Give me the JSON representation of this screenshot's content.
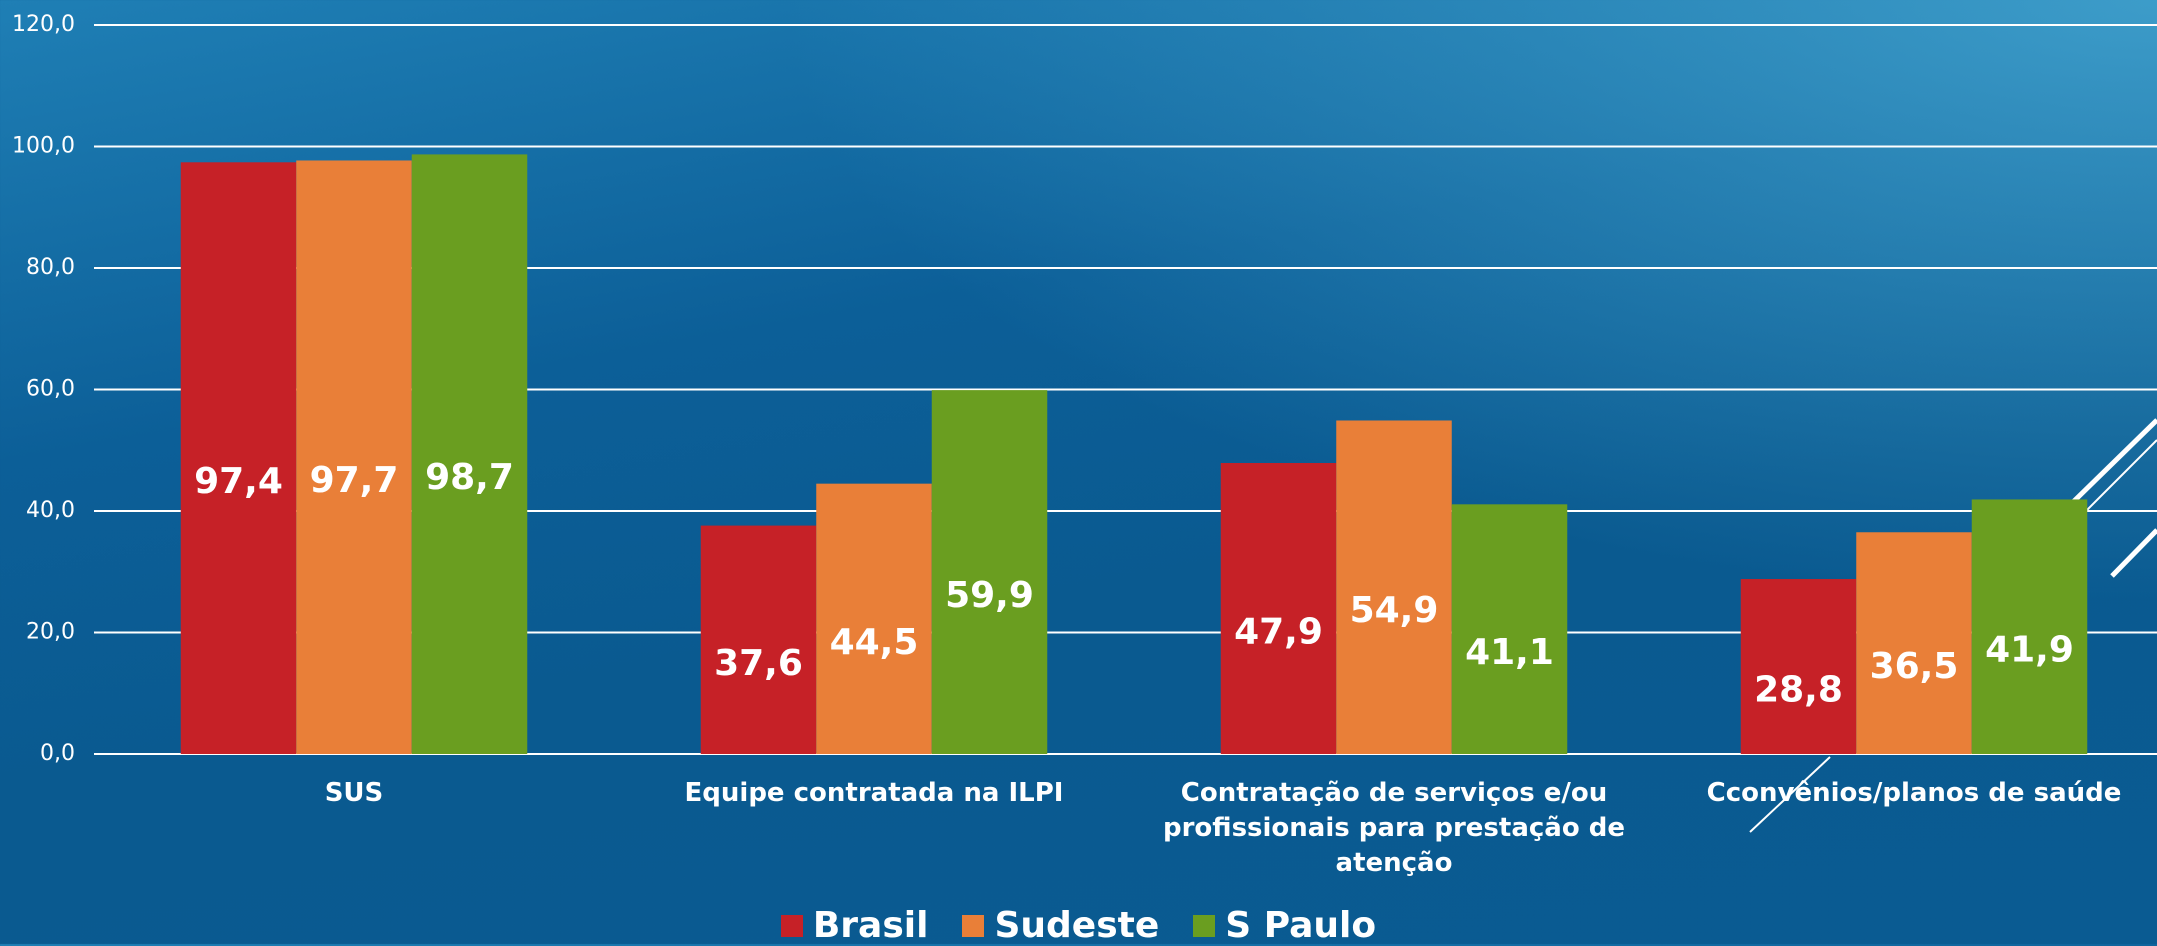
{
  "chart_data": {
    "type": "bar",
    "categories": [
      "SUS",
      "Equipe contratada na ILPI",
      "Contratação de serviços e/ou profissionais para prestação de atenção",
      "Cconvênios/planos de saúde"
    ],
    "series": [
      {
        "name": "Brasil",
        "color": "#c62127",
        "values": [
          97.4,
          37.6,
          47.9,
          28.8
        ],
        "value_labels": [
          "97,4",
          "37,6",
          "47,9",
          "28,8"
        ]
      },
      {
        "name": "Sudeste",
        "color": "#e97f38",
        "values": [
          97.7,
          44.5,
          54.9,
          36.5
        ],
        "value_labels": [
          "97,7",
          "44,5",
          "54,9",
          "36,5"
        ]
      },
      {
        "name": "S Paulo",
        "color": "#6a9e20",
        "values": [
          98.7,
          59.9,
          41.1,
          41.9
        ],
        "value_labels": [
          "98,7",
          "59,9",
          "41,1",
          "41,9"
        ]
      }
    ],
    "ylim": [
      0,
      120
    ],
    "yticks": [
      {
        "value": 0,
        "label": "0,0"
      },
      {
        "value": 20,
        "label": "20,0"
      },
      {
        "value": 40,
        "label": "40,0"
      },
      {
        "value": 60,
        "label": "60,0"
      },
      {
        "value": 80,
        "label": "80,0"
      },
      {
        "value": 100,
        "label": "100,0"
      },
      {
        "value": 120,
        "label": "120,0"
      }
    ],
    "grid": true,
    "legend": "bottom"
  }
}
